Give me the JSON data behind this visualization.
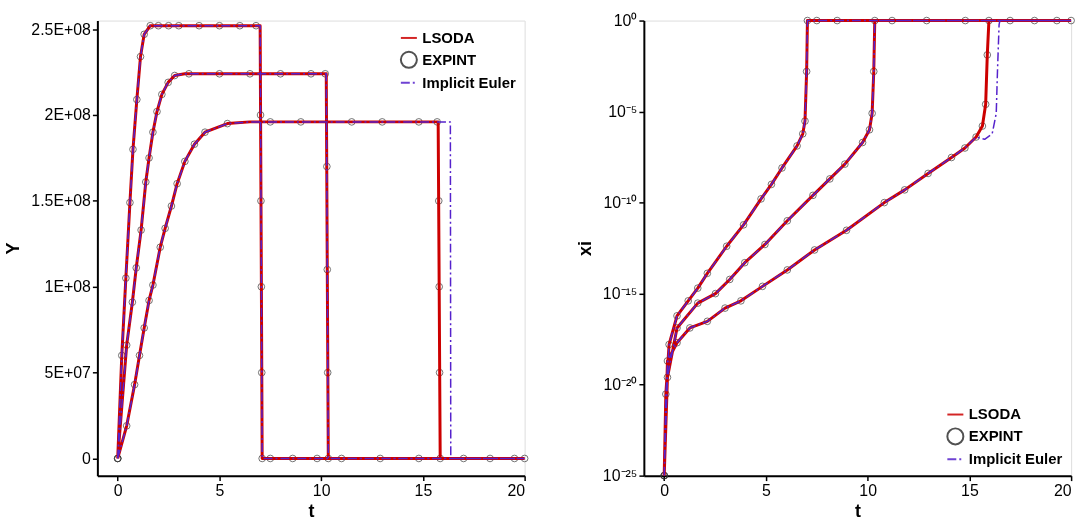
{
  "chart_data": [
    {
      "type": "line",
      "xlabel": "t",
      "ylabel": "Y",
      "xlim": [
        -1,
        20
      ],
      "ylim": [
        -10000000,
        255000000
      ],
      "xticks": [
        0,
        5,
        10,
        15,
        20
      ],
      "yticks": [
        0,
        {
          "value": 50000000,
          "label": "5E+07"
        },
        {
          "value": 100000000,
          "label": "1E+08"
        },
        {
          "value": 150000000,
          "label": "1.5E+08"
        },
        {
          "value": 200000000,
          "label": "2E+08"
        },
        {
          "value": 250000000,
          "label": "2.5E+08"
        }
      ],
      "grid": false,
      "legend": "top right",
      "series": [
        {
          "name": "LSODA",
          "type": "line",
          "color": "#cc0000",
          "line_style": "solid",
          "x": [
            0,
            0.2,
            0.4,
            0.6,
            0.75,
            0.94,
            1.12,
            1.3,
            1.6,
            7.0,
            7.05,
            7.1,
            20,
            null,
            0,
            0.2,
            0.44,
            0.72,
            0.91,
            1.15,
            1.38,
            1.54,
            1.73,
            1.93,
            2.17,
            2.48,
            2.8,
            3.3,
            10.25,
            10.3,
            10.35,
            20,
            null,
            0,
            0.44,
            0.83,
            1.07,
            1.3,
            1.54,
            1.73,
            2.09,
            2.33,
            2.64,
            2.92,
            3.3,
            3.77,
            4.29,
            5.39,
            6.5,
            15.75,
            15.8,
            15.85,
            20
          ],
          "values": [
            0,
            60000000,
            105000000,
            149000000,
            180000000,
            209000000,
            234000000,
            247000000,
            252000000,
            252000000,
            130000000,
            0,
            0,
            null,
            0,
            30000000,
            66000000,
            91000000,
            111000000,
            133000000,
            161000000,
            175000000,
            190000000,
            202000000,
            212000000,
            219000000,
            223000000,
            224000000,
            224000000,
            110000000,
            0,
            0,
            null,
            0,
            19000000,
            43000000,
            60000000,
            76000000,
            92000000,
            101000000,
            123000000,
            134000000,
            147000000,
            160000000,
            173000000,
            183000000,
            190000000,
            195000000,
            196000000,
            196000000,
            100000000,
            0,
            0
          ]
        },
        {
          "name": "EXPINT",
          "type": "scatter",
          "color": "#333333",
          "marker": "circle",
          "x": [
            0,
            0.2,
            0.4,
            0.6,
            0.75,
            0.94,
            1.12,
            1.3,
            1.6,
            2,
            2.5,
            3,
            4,
            5,
            6,
            6.8,
            7.02,
            7.04,
            7.06,
            7.08,
            7.1,
            7.5,
            8.6,
            9.8,
            null,
            0,
            0.44,
            0.72,
            0.91,
            1.15,
            1.38,
            1.54,
            1.73,
            1.93,
            2.17,
            2.48,
            2.8,
            3.5,
            5,
            6.5,
            8,
            9.5,
            10.2,
            10.28,
            10.3,
            10.32,
            10.35,
            11,
            12.9,
            14.8,
            null,
            0,
            0.44,
            0.83,
            1.07,
            1.3,
            1.54,
            1.73,
            2.09,
            2.33,
            2.64,
            2.92,
            3.3,
            3.77,
            4.29,
            5.39,
            7.5,
            9,
            11.5,
            13,
            14.8,
            15.7,
            15.78,
            15.8,
            15.82,
            15.85,
            17,
            18.3,
            19.5,
            20
          ],
          "values": [
            0,
            60000000,
            105000000,
            149000000,
            180000000,
            209000000,
            234000000,
            247000000,
            252000000,
            252000000,
            252000000,
            252000000,
            252000000,
            252000000,
            252000000,
            252000000,
            200000000,
            150000000,
            100000000,
            50000000,
            0,
            0,
            0,
            0,
            null,
            0,
            66000000,
            91000000,
            111000000,
            133000000,
            161000000,
            175000000,
            190000000,
            202000000,
            212000000,
            219000000,
            223000000,
            224000000,
            224000000,
            224000000,
            224000000,
            224000000,
            224000000,
            170000000,
            110000000,
            50000000,
            0,
            0,
            0,
            0,
            null,
            0,
            19000000,
            43000000,
            60000000,
            76000000,
            92000000,
            101000000,
            123000000,
            134000000,
            147000000,
            160000000,
            173000000,
            183000000,
            190000000,
            195000000,
            196000000,
            196000000,
            196000000,
            196000000,
            196000000,
            196000000,
            150000000,
            100000000,
            50000000,
            0,
            0,
            0,
            0,
            0
          ]
        },
        {
          "name": "Implicit Euler",
          "type": "line",
          "color": "#5522cc",
          "line_style": "dashed",
          "x": [
            0,
            0.2,
            0.4,
            0.6,
            0.75,
            0.94,
            1.12,
            1.3,
            1.6,
            7.0,
            7.05,
            7.1,
            20,
            null,
            0,
            0.2,
            0.44,
            0.72,
            0.91,
            1.15,
            1.38,
            1.54,
            1.73,
            1.93,
            2.17,
            2.48,
            2.8,
            3.3,
            10.25,
            10.3,
            10.35,
            20,
            null,
            0,
            0.44,
            0.83,
            1.07,
            1.3,
            1.54,
            1.73,
            2.09,
            2.33,
            2.64,
            2.92,
            3.3,
            3.77,
            4.29,
            5.39,
            6.5,
            16.35,
            16.37,
            20
          ],
          "values": [
            0,
            60000000,
            105000000,
            149000000,
            180000000,
            209000000,
            234000000,
            247000000,
            252000000,
            252000000,
            130000000,
            0,
            0,
            null,
            0,
            30000000,
            66000000,
            91000000,
            111000000,
            133000000,
            161000000,
            175000000,
            190000000,
            202000000,
            212000000,
            219000000,
            223000000,
            224000000,
            224000000,
            110000000,
            0,
            0,
            null,
            0,
            19000000,
            43000000,
            60000000,
            76000000,
            92000000,
            101000000,
            123000000,
            134000000,
            147000000,
            160000000,
            173000000,
            183000000,
            190000000,
            195000000,
            196000000,
            196000000,
            0,
            0
          ]
        }
      ]
    },
    {
      "type": "line",
      "xlabel": "t",
      "ylabel": "xi",
      "xlim": [
        -1,
        20
      ],
      "ylim": [
        1e-25,
        1
      ],
      "log": true,
      "xticks": [
        0,
        5,
        10,
        15,
        20
      ],
      "yticks": [
        {
          "value": 1e-25,
          "label": "10⁻²⁵"
        },
        {
          "value": 1e-20,
          "label": "10⁻²⁰"
        },
        {
          "value": 1e-15,
          "label": "10⁻¹⁵"
        },
        {
          "value": 1e-10,
          "label": "10⁻¹⁰"
        },
        {
          "value": 1e-05,
          "label": "10⁻⁵"
        },
        {
          "value": 1,
          "label": "10⁰"
        }
      ],
      "grid": false,
      "legend": "bottom right",
      "series": [
        {
          "name": "LSODA",
          "type": "line",
          "color": "#cc0000",
          "line_style": "solid",
          "x": [
            0,
            0.08,
            0.24,
            0.63,
            1.18,
            1.65,
            2.12,
            3.07,
            3.9,
            4.76,
            5.27,
            5.79,
            6.53,
            6.81,
            6.92,
            7.0,
            7.04,
            20,
            null,
            0,
            0.16,
            0.63,
            1.65,
            2.52,
            3.22,
            3.96,
            4.95,
            6.05,
            7.31,
            8.14,
            8.88,
            9.75,
            10.09,
            10.22,
            10.3,
            10.35,
            20,
            null,
            0,
            0.16,
            0.63,
            1.26,
            2.12,
            2.99,
            3.77,
            4.83,
            6.05,
            7.39,
            8.96,
            10.82,
            11.82,
            12.97,
            14.12,
            14.78,
            15.33,
            15.64,
            15.8,
            15.88,
            15.96,
            20
          ],
          "values": [
            1e-25,
            3e-21,
            1.6e-18,
            6e-17,
            4e-16,
            2e-15,
            1.3e-14,
            4e-13,
            6e-12,
            1.6e-10,
            1e-09,
            8e-09,
            1.3e-07,
            6e-07,
            3e-06,
            0.0016,
            1,
            1,
            null,
            1e-25,
            2.5e-20,
            1.3e-17,
            3e-16,
            1e-15,
            6e-15,
            5e-14,
            5e-13,
            1e-11,
            2.5e-10,
            2e-09,
            1.3e-08,
            2e-07,
            1e-06,
            8e-06,
            0.0016,
            1,
            1,
            null,
            1e-25,
            2e-19,
            2e-18,
            1.3e-17,
            3e-17,
            1.6e-16,
            4e-16,
            2.5e-15,
            2e-14,
            2.5e-13,
            3e-12,
            1e-10,
            5e-10,
            4e-09,
            3e-08,
            1e-07,
            4e-07,
            1.6e-06,
            2.5e-05,
            0.013,
            1,
            1
          ]
        },
        {
          "name": "EXPINT",
          "type": "scatter",
          "color": "#333333",
          "marker": "circle",
          "x": [
            0,
            0.08,
            0.24,
            0.63,
            1.18,
            1.65,
            2.12,
            3.07,
            3.9,
            4.76,
            5.27,
            5.79,
            6.53,
            6.81,
            6.92,
            7.0,
            7.04,
            7.5,
            8.5,
            null,
            0,
            0.16,
            0.63,
            1.65,
            2.52,
            3.22,
            3.96,
            4.95,
            6.05,
            7.31,
            8.14,
            8.88,
            9.75,
            10.09,
            10.22,
            10.3,
            10.35,
            11.2,
            12.9,
            14.8,
            null,
            0,
            0.16,
            0.63,
            1.26,
            2.12,
            2.99,
            3.77,
            4.83,
            6.05,
            7.39,
            8.96,
            10.82,
            11.82,
            12.97,
            14.12,
            14.78,
            15.33,
            15.64,
            15.8,
            15.88,
            15.96,
            17,
            18.2,
            19.3,
            20
          ],
          "values": [
            1e-25,
            3e-21,
            1.6e-18,
            6e-17,
            4e-16,
            2e-15,
            1.3e-14,
            4e-13,
            6e-12,
            1.6e-10,
            1e-09,
            8e-09,
            1.3e-07,
            6e-07,
            3e-06,
            0.0016,
            1,
            1,
            1,
            null,
            1e-25,
            2.5e-20,
            1.3e-17,
            3e-16,
            1e-15,
            6e-15,
            5e-14,
            5e-13,
            1e-11,
            2.5e-10,
            2e-09,
            1.3e-08,
            2e-07,
            1e-06,
            8e-06,
            0.0016,
            1,
            1,
            1,
            1,
            null,
            1e-25,
            2e-19,
            2e-18,
            1.3e-17,
            3e-17,
            1.6e-16,
            4e-16,
            2.5e-15,
            2e-14,
            2.5e-13,
            3e-12,
            1e-10,
            5e-10,
            4e-09,
            3e-08,
            1e-07,
            4e-07,
            1.6e-06,
            2.5e-05,
            0.013,
            1,
            1,
            1,
            1,
            1
          ]
        },
        {
          "name": "Implicit Euler",
          "type": "line",
          "color": "#5522cc",
          "line_style": "dashed",
          "x": [
            0,
            0.08,
            0.24,
            0.63,
            1.18,
            1.65,
            2.12,
            3.07,
            3.9,
            4.76,
            5.27,
            5.79,
            6.53,
            6.81,
            6.92,
            7.0,
            7.04,
            20,
            null,
            0,
            0.16,
            0.63,
            1.65,
            2.52,
            3.22,
            3.96,
            4.95,
            6.05,
            7.31,
            8.14,
            8.88,
            9.75,
            10.09,
            10.22,
            10.3,
            10.35,
            20,
            null,
            0,
            0.16,
            0.63,
            1.26,
            2.12,
            2.99,
            3.77,
            4.83,
            6.05,
            7.39,
            8.96,
            10.82,
            11.82,
            12.97,
            14.12,
            14.78,
            15.33,
            15.75,
            16.12,
            16.32,
            16.38,
            16.46,
            16.5,
            20
          ],
          "values": [
            1e-25,
            3e-21,
            1.6e-18,
            6e-17,
            4e-16,
            2e-15,
            1.3e-14,
            4e-13,
            6e-12,
            1.6e-10,
            1e-09,
            8e-09,
            1.3e-07,
            6e-07,
            3e-06,
            0.0016,
            1,
            1,
            null,
            1e-25,
            2.5e-20,
            1.3e-17,
            3e-16,
            1e-15,
            6e-15,
            5e-14,
            5e-13,
            1e-11,
            2.5e-10,
            2e-09,
            1.3e-08,
            2e-07,
            1e-06,
            8e-06,
            0.0016,
            1,
            1,
            null,
            1e-25,
            2e-19,
            2e-18,
            1.3e-17,
            3e-17,
            1.6e-16,
            4e-16,
            2.5e-15,
            2e-14,
            2.5e-13,
            3e-12,
            1e-10,
            5e-10,
            4e-09,
            3e-08,
            1e-07,
            4e-07,
            3e-07,
            6e-07,
            8e-06,
            0.0016,
            0.6,
            1,
            1
          ]
        }
      ]
    }
  ]
}
